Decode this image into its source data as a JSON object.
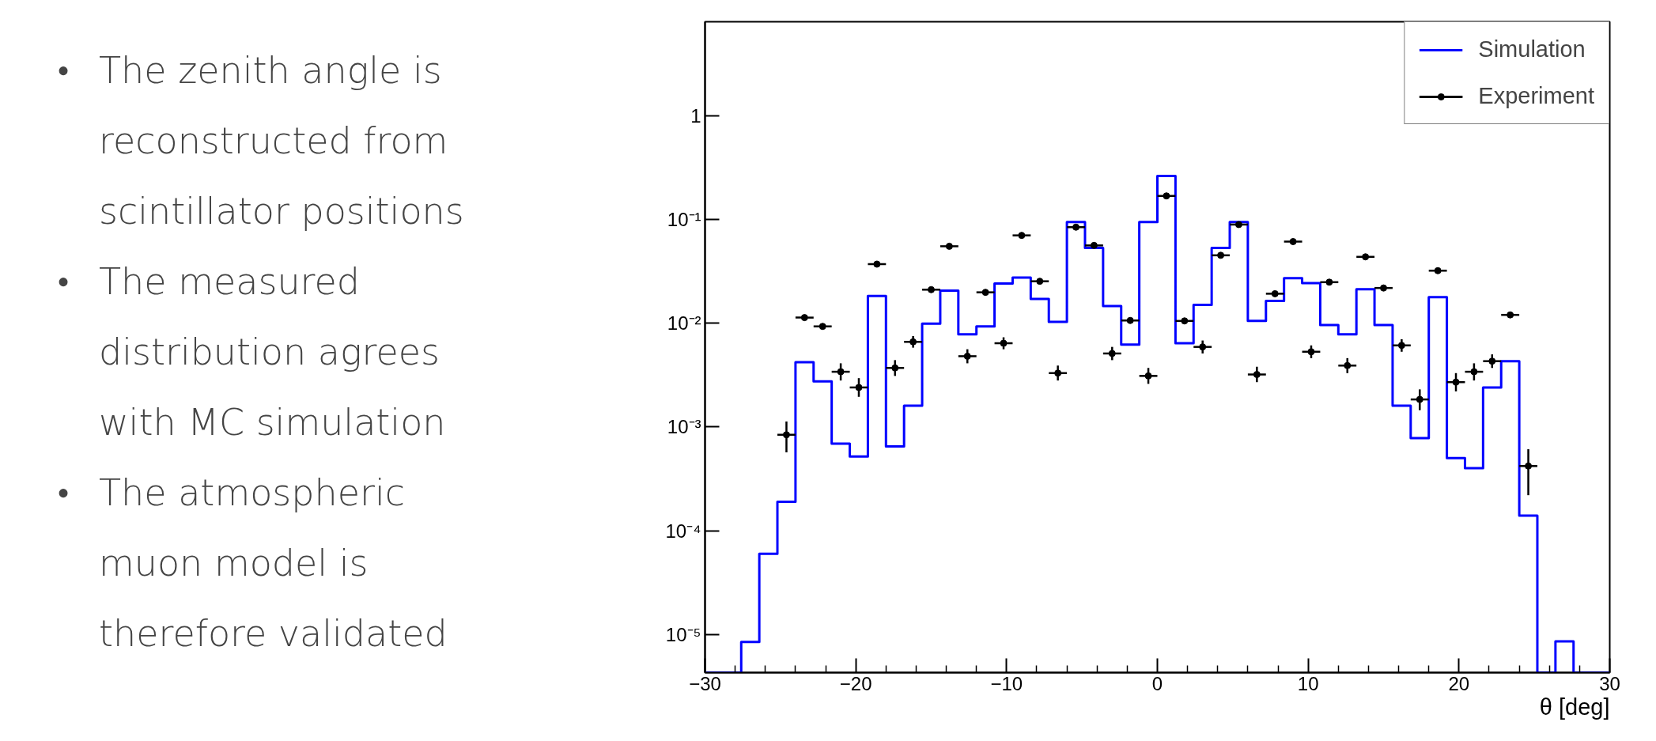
{
  "chart_data": [
    {
      "type": "other",
      "annotations": [
        "• The zenith angle is reconstructed from scintillator positions",
        "• The measured distribution agrees with MC simulation",
        "• The atmospheric muon model is therefore validated"
      ]
    },
    {
      "type": "histogram",
      "xlabel": "θ [deg]",
      "log": "y",
      "legend": "top right",
      "grid": false,
      "xlim": [
        -30,
        30
      ],
      "ylim": [
        4.3e-06,
        8
      ],
      "xticks": [
        {
          "value": -30,
          "label": "−30"
        },
        {
          "value": -20,
          "label": "−20"
        },
        {
          "value": -10,
          "label": "−10"
        },
        0,
        10,
        20,
        30
      ],
      "yticks": [
        {
          "value": 1e-05,
          "label": "10⁻⁵"
        },
        {
          "value": 0.0001,
          "label": "10⁻⁴"
        },
        {
          "value": 0.001,
          "label": "10⁻³"
        },
        {
          "value": 0.01,
          "label": "10⁻²"
        },
        {
          "value": 0.1,
          "label": "10⁻¹"
        },
        1
      ],
      "bins": [
        -30,
        -28.8,
        -27.6,
        -26.4,
        -25.2,
        -24,
        -22.8,
        -21.6,
        -20.4,
        -19.2,
        -18,
        -16.8,
        -15.6,
        -14.4,
        -13.2,
        -12,
        -10.8,
        -9.6,
        -8.4,
        -7.2,
        -6,
        -4.8,
        -3.6,
        -2.4,
        -1.2,
        0,
        1.2,
        2.4,
        3.6,
        4.8,
        6,
        7.2,
        8.4,
        9.6,
        10.8,
        12,
        13.2,
        14.4,
        15.6,
        16.8,
        18,
        19.2,
        20.4,
        21.6,
        22.8,
        24,
        25.2,
        26.4,
        27.6,
        28.8,
        30
      ],
      "series": [
        {
          "name": "Simulation",
          "type": "histogram",
          "color": "#0000ff",
          "values": [
            null,
            null,
            8.5e-06,
            6e-05,
            0.00019,
            0.0042,
            0.00275,
            0.00069,
            0.00052,
            0.0183,
            0.00065,
            0.0016,
            0.0099,
            0.0206,
            0.0078,
            0.0093,
            0.0241,
            0.0274,
            0.0171,
            0.0103,
            0.094,
            0.053,
            0.0146,
            0.0062,
            0.094,
            0.262,
            0.0064,
            0.015,
            0.053,
            0.094,
            0.0105,
            0.0164,
            0.0271,
            0.0243,
            0.0096,
            0.0078,
            0.0212,
            0.0096,
            0.0016,
            0.00078,
            0.0178,
            0.0005,
            0.0004,
            0.0024,
            0.0043,
            0.00014,
            null,
            8.6e-06,
            null,
            null
          ]
        },
        {
          "name": "Experiment",
          "type": "scatter",
          "color": "#000000",
          "marker": "circle",
          "x": [
            -24.6,
            -23.4,
            -22.2,
            -21,
            -19.8,
            -18.6,
            -17.4,
            -16.2,
            -15,
            -13.8,
            -12.6,
            -11.4,
            -10.2,
            -9,
            -7.8,
            -6.6,
            -5.4,
            -4.2,
            -3,
            -1.8,
            -0.6,
            0.6,
            1.8,
            3,
            4.2,
            5.4,
            6.6,
            7.8,
            9,
            10.2,
            11.4,
            12.6,
            13.8,
            15,
            16.2,
            17.4,
            18.6,
            19.8,
            21,
            22.2,
            23.4,
            24.6
          ],
          "values": [
            0.00084,
            0.0113,
            0.0093,
            0.0034,
            0.0024,
            0.037,
            0.0037,
            0.0066,
            0.021,
            0.055,
            0.0048,
            0.0198,
            0.0064,
            0.07,
            0.0253,
            0.0033,
            0.084,
            0.056,
            0.0051,
            0.0106,
            0.0031,
            0.168,
            0.0105,
            0.0059,
            0.045,
            0.089,
            0.0032,
            0.0192,
            0.061,
            0.0053,
            0.0248,
            0.0039,
            0.0435,
            0.0218,
            0.0061,
            0.00184,
            0.032,
            0.0027,
            0.0034,
            0.0043,
            0.012,
            0.00042
          ],
          "errors": [
            [
              0.00057,
              0.00113
            ],
            null,
            null,
            [
              0.0028,
              0.0041
            ],
            [
              0.00195,
              0.00295
            ],
            null,
            [
              0.0031,
              0.0044
            ],
            [
              0.0058,
              0.0075
            ],
            null,
            null,
            [
              0.0041,
              0.0056
            ],
            null,
            [
              0.0056,
              0.0073
            ],
            null,
            null,
            [
              0.0028,
              0.0039
            ],
            null,
            null,
            [
              0.0044,
              0.0059
            ],
            null,
            [
              0.0026,
              0.0037
            ],
            null,
            null,
            [
              0.0051,
              0.0068
            ],
            null,
            null,
            [
              0.0027,
              0.0038
            ],
            null,
            null,
            [
              0.0046,
              0.0061
            ],
            null,
            [
              0.0033,
              0.0046
            ],
            null,
            null,
            [
              0.0053,
              0.007
            ],
            [
              0.00145,
              0.0023
            ],
            null,
            [
              0.0022,
              0.0033
            ],
            [
              0.0028,
              0.0041
            ],
            [
              0.0037,
              0.005
            ],
            null,
            [
              0.00022,
              0.00061
            ]
          ],
          "xerrors": [
            0.6,
            0.6,
            0.6,
            0.6,
            0.6,
            0.6,
            0.6,
            0.6,
            0.6,
            0.6,
            0.6,
            0.6,
            0.6,
            0.6,
            0.6,
            0.6,
            0.6,
            0.6,
            0.6,
            0.6,
            0.6,
            0.6,
            0.6,
            0.6,
            0.6,
            0.6,
            0.6,
            0.6,
            0.6,
            0.6,
            0.6,
            0.6,
            0.6,
            0.6,
            0.6,
            0.6,
            0.6,
            0.6,
            0.6,
            0.6,
            0.6,
            0.6
          ]
        }
      ]
    }
  ]
}
